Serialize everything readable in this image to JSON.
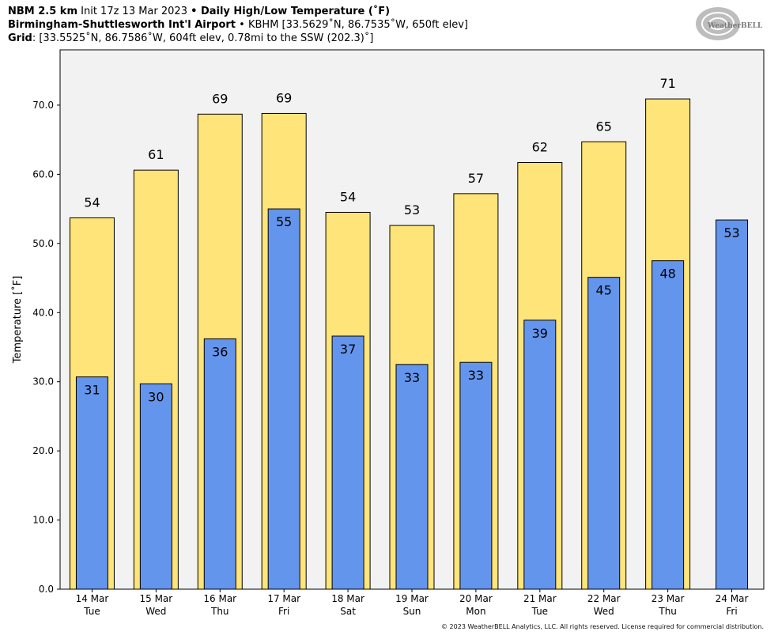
{
  "header": {
    "line1_bold": "NBM 2.5 km",
    "line1_init": " Init 17z 13 Mar 2023 ",
    "line1_sep": "•",
    "line1_product": " Daily High/Low Temperature (˚F)",
    "line2_bold": "Birmingham-Shuttlesworth Int'l Airport",
    "line2_sep": " • ",
    "line2_rest": "KBHM [33.5629˚N, 86.7535˚W, 650ft elev]",
    "line3_bold": "Grid",
    "line3_rest": ": [33.5525˚N, 86.7586˚W, 604ft elev, 0.78mi to the SSW (202.3)˚]"
  },
  "logo": {
    "text": "WeatherBELL"
  },
  "footer": "© 2023 WeatherBELL Analytics, LLC. All rights reserved. License required for commercial distribution.",
  "colors": {
    "high": "#FFE47A",
    "low": "#6495ED",
    "plot_bg": "#F2F2F2"
  },
  "chart_data": {
    "type": "bar",
    "ylabel": "Temperature [˚F]",
    "ylim": [
      0,
      78
    ],
    "yticks": [
      0,
      10,
      20,
      30,
      40,
      50,
      60,
      70
    ],
    "ytick_labels": [
      "0.0",
      "10.0",
      "20.0",
      "30.0",
      "40.0",
      "50.0",
      "60.0",
      "70.0"
    ],
    "grid": false,
    "categories": [
      "14 Mar",
      "15 Mar",
      "16 Mar",
      "17 Mar",
      "18 Mar",
      "19 Mar",
      "20 Mar",
      "21 Mar",
      "22 Mar",
      "23 Mar",
      "24 Mar"
    ],
    "weekdays": [
      "Tue",
      "Wed",
      "Thu",
      "Fri",
      "Sat",
      "Sun",
      "Mon",
      "Tue",
      "Wed",
      "Thu",
      "Fri"
    ],
    "series": [
      {
        "key": "high",
        "values": [
          53.7,
          60.6,
          68.7,
          68.8,
          54.5,
          52.6,
          57.2,
          61.7,
          64.7,
          70.9,
          null
        ],
        "labels": [
          "54",
          "61",
          "69",
          "69",
          "54",
          "53",
          "57",
          "62",
          "65",
          "71",
          ""
        ]
      },
      {
        "key": "low",
        "values": [
          30.7,
          29.7,
          36.2,
          55.0,
          36.6,
          32.5,
          32.8,
          38.9,
          45.1,
          47.5,
          53.4
        ],
        "labels": [
          "31",
          "30",
          "36",
          "55",
          "37",
          "33",
          "33",
          "39",
          "45",
          "48",
          "53"
        ]
      }
    ]
  }
}
